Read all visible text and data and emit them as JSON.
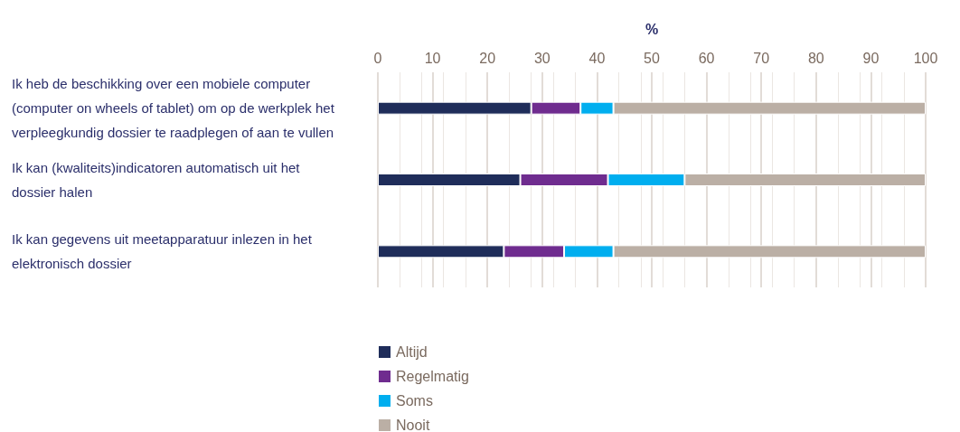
{
  "chart_data": {
    "type": "bar",
    "orientation": "horizontal",
    "stacked": true,
    "xlabel": "%",
    "categories": [
      "Ik heb de beschikking over een mobiele computer (computer on wheels of tablet) om op de werkplek het verpleegkundig dossier te raadplegen of aan te vullen",
      "Ik kan (kwaliteits)indicatoren automatisch uit het dossier halen",
      "Ik kan gegevens uit meetapparatuur inlezen in het elektronisch dossier"
    ],
    "series": [
      {
        "name": "Altijd",
        "color": "#1f2d5a",
        "values": [
          28,
          26,
          23
        ]
      },
      {
        "name": "Regelmatig",
        "color": "#6f2c8f",
        "values": [
          9,
          16,
          11
        ]
      },
      {
        "name": "Soms",
        "color": "#00aeef",
        "values": [
          6,
          14,
          9
        ]
      },
      {
        "name": "Nooit",
        "color": "#bbafa5",
        "values": [
          57,
          44,
          57
        ]
      }
    ],
    "xlim": [
      0,
      100
    ],
    "xticks": [
      0,
      10,
      20,
      30,
      40,
      50,
      60,
      70,
      80,
      90,
      100
    ],
    "grid": "x",
    "legend": "bottom"
  }
}
